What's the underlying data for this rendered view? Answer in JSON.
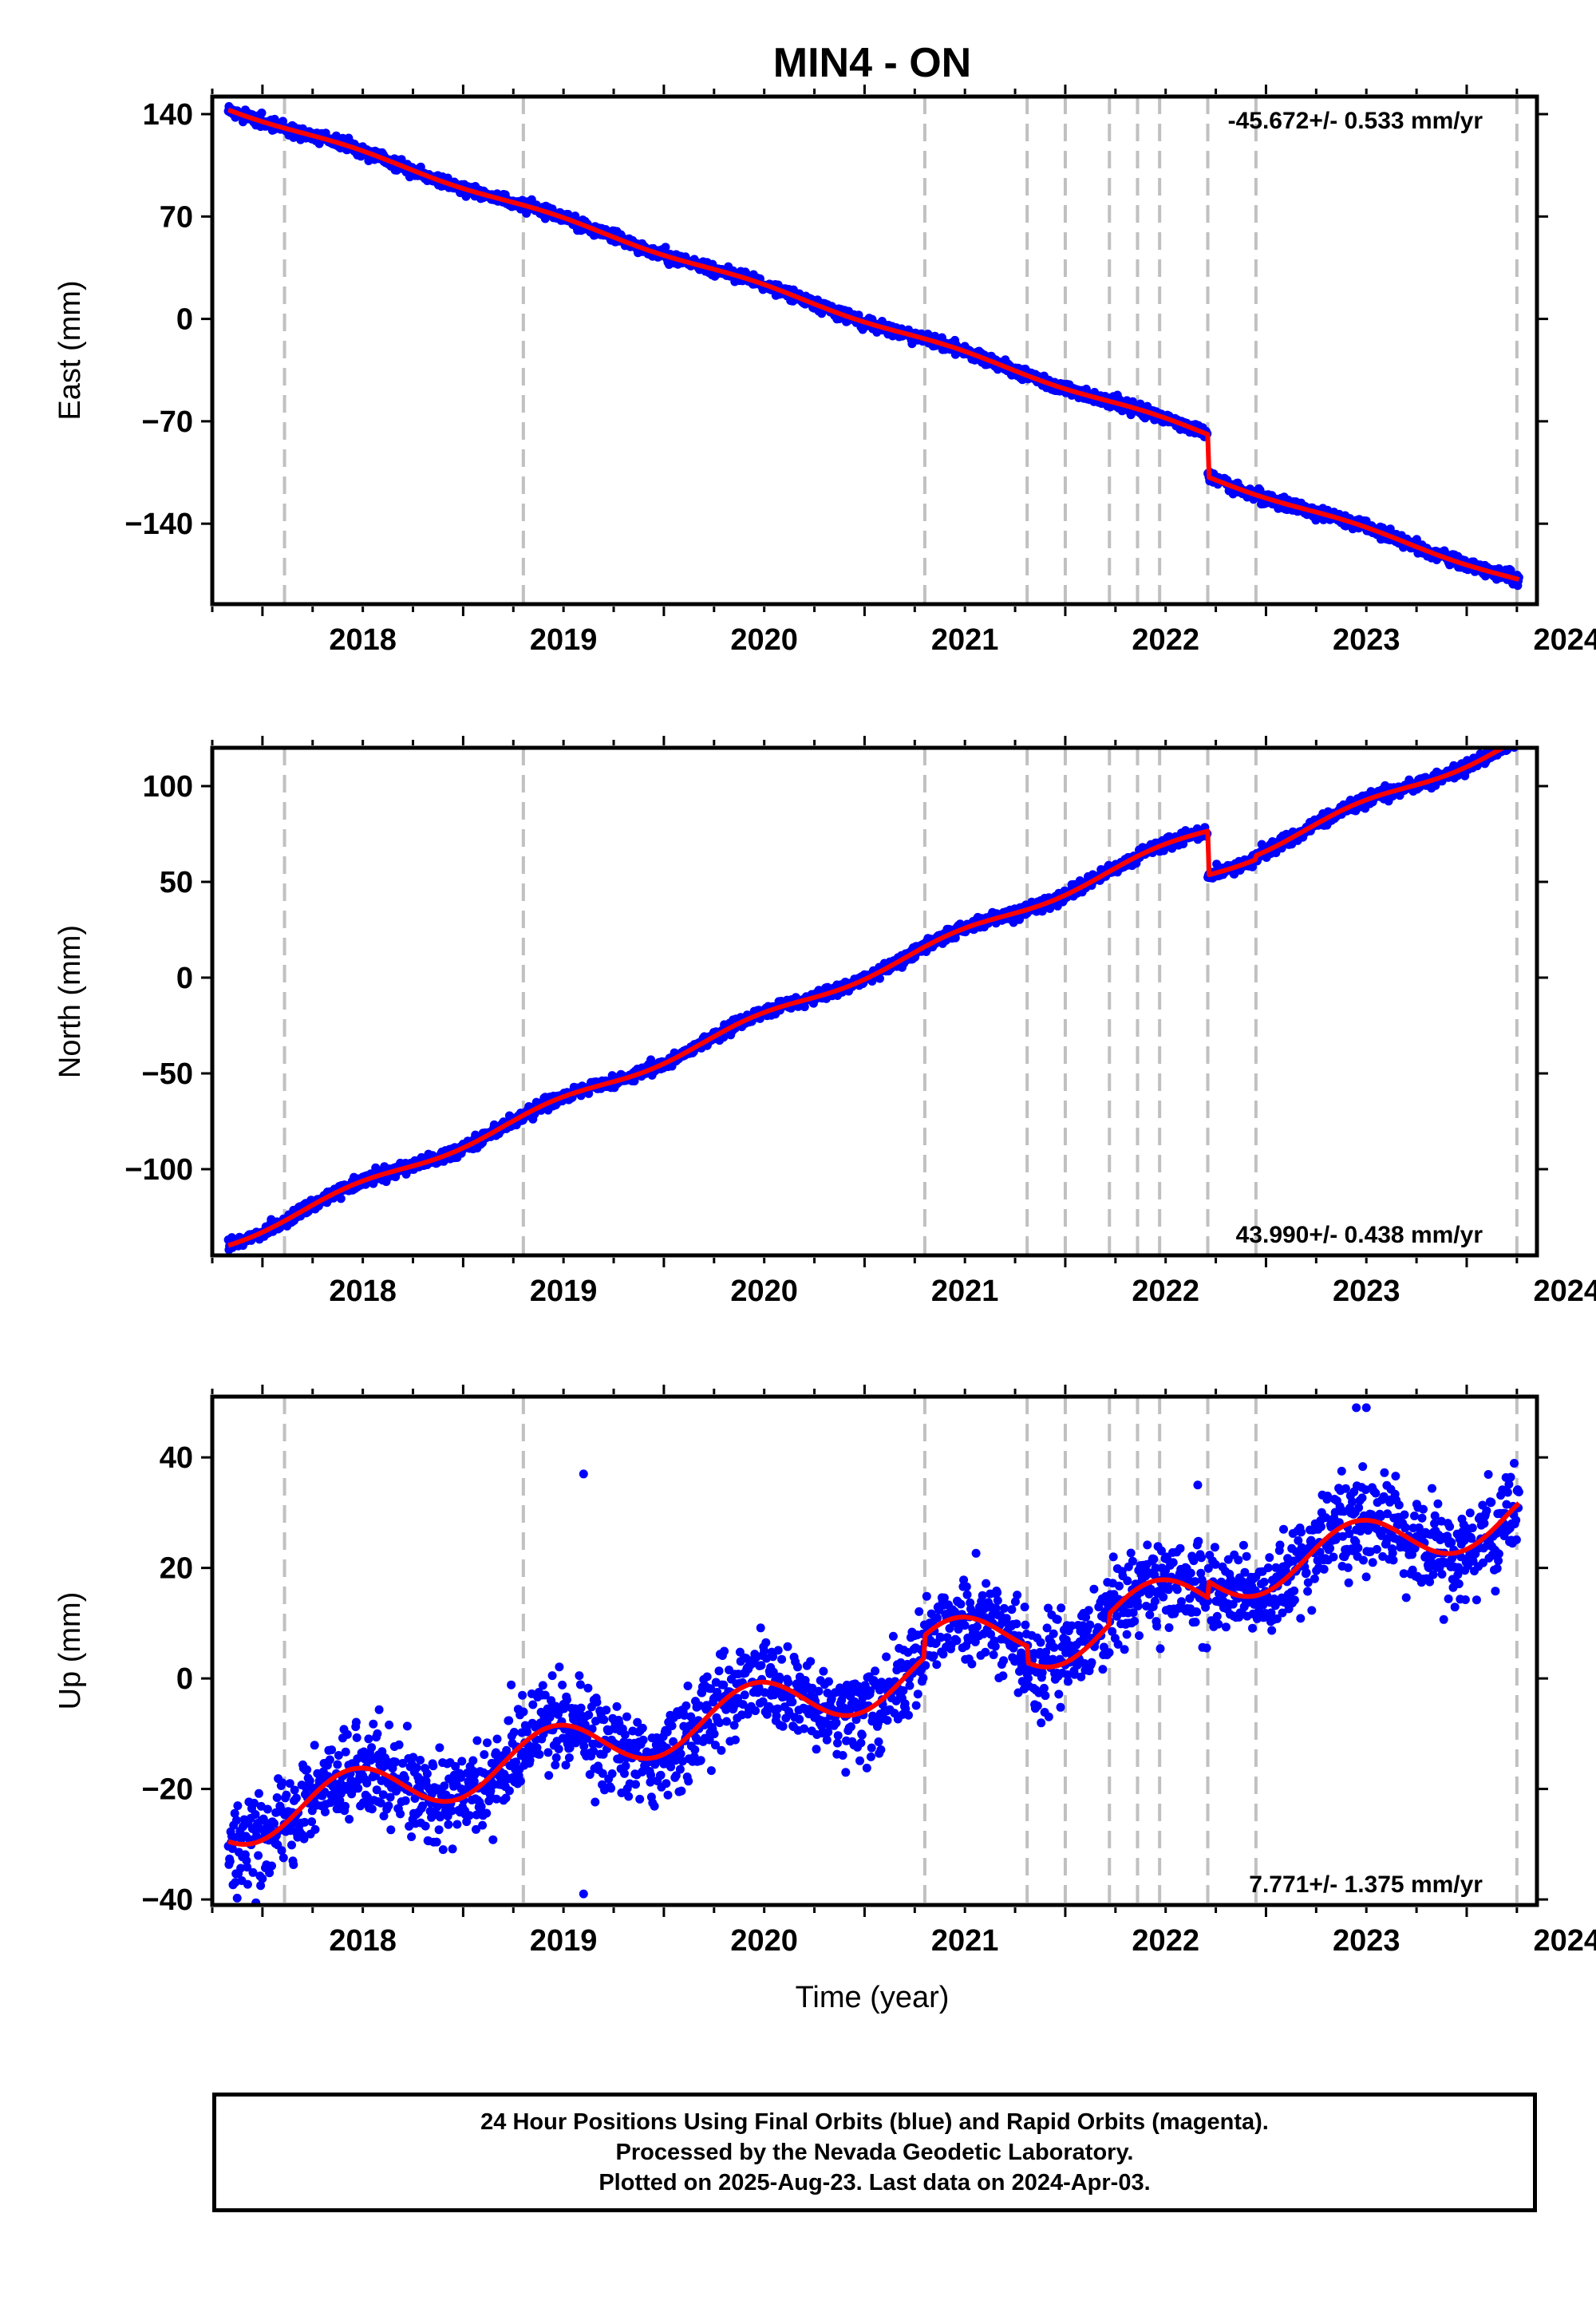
{
  "figure": {
    "title": "MIN4 - ON",
    "xlabel": "Time (year)",
    "footer": [
      "24 Hour Positions Using Final Orbits (blue) and Rapid Orbits (magenta).",
      "Processed by the Nevada Geodetic Laboratory.",
      "Plotted on 2025-Aug-23. Last data on 2024-Apr-03."
    ]
  },
  "colors": {
    "data": "#0000ff",
    "model": "#ff0000",
    "event_lines": "#c0c0c0",
    "axes": "#000000"
  },
  "chart_data": [
    {
      "type": "scatter",
      "panel": "east",
      "ylabel": "East (mm)",
      "rate_text": "-45.672+/- 0.533 mm/yr",
      "rate_position": "top-right",
      "xlim": [
        2017.75,
        2024.35
      ],
      "ylim": [
        -195,
        152
      ],
      "x_ticks": [
        "2018",
        "2019",
        "2020",
        "2021",
        "2022",
        "2023",
        "2024"
      ],
      "y_ticks": [
        140,
        70,
        0,
        -70,
        -140
      ],
      "event_lines": [
        2018.11,
        2019.3,
        2021.3,
        2021.81,
        2022.0,
        2022.22,
        2022.36,
        2022.47,
        2022.71,
        2022.95,
        2024.25
      ],
      "model": {
        "rate": -45.672,
        "anchor": [
          2017.83,
          144
        ],
        "offsets": [
          {
            "at": 2022.71,
            "value": -29
          }
        ],
        "seasonal": 1.5,
        "scatter": 2.0,
        "end": 2024.26
      },
      "visible_points_approx": 2200
    },
    {
      "type": "scatter",
      "panel": "north",
      "ylabel": "North (mm)",
      "rate_text": "43.990+/- 0.438 mm/yr",
      "rate_position": "bottom-right",
      "xlim": [
        2017.75,
        2024.35
      ],
      "ylim": [
        -145,
        120
      ],
      "x_ticks": [
        "2018",
        "2019",
        "2020",
        "2021",
        "2022",
        "2023",
        "2024"
      ],
      "y_ticks": [
        100,
        50,
        0,
        -50,
        -100
      ],
      "event_lines": [
        2018.11,
        2019.3,
        2021.3,
        2021.81,
        2022.0,
        2022.22,
        2022.36,
        2022.47,
        2022.71,
        2022.95,
        2024.25
      ],
      "model": {
        "rate": 43.99,
        "anchor": [
          2017.83,
          -138
        ],
        "offsets": [
          {
            "at": 2022.71,
            "value": -23
          },
          {
            "at": 2022.95,
            "value": 2
          }
        ],
        "seasonal": 2.5,
        "scatter": 1.6,
        "end": 2024.26
      },
      "visible_points_approx": 2200
    },
    {
      "type": "scatter",
      "panel": "up",
      "ylabel": "Up (mm)",
      "rate_text": "7.771+/- 1.375 mm/yr",
      "rate_position": "bottom-right",
      "xlim": [
        2017.75,
        2024.35
      ],
      "ylim": [
        -41,
        51
      ],
      "x_ticks": [
        "2018",
        "2019",
        "2020",
        "2021",
        "2022",
        "2023",
        "2024"
      ],
      "y_ticks": [
        40,
        20,
        0,
        -20,
        -40
      ],
      "event_lines": [
        2018.11,
        2019.3,
        2021.3,
        2021.81,
        2022.0,
        2022.22,
        2022.36,
        2022.47,
        2022.71,
        2022.95,
        2024.25
      ],
      "model": {
        "rate": 7.771,
        "anchor": [
          2017.83,
          -26
        ],
        "offsets": [
          {
            "at": 2021.3,
            "value": 4
          },
          {
            "at": 2021.81,
            "value": -3
          },
          {
            "at": 2022.22,
            "value": 2
          },
          {
            "at": 2022.71,
            "value": 3
          }
        ],
        "seasonal": 4.8,
        "scatter": 4.2,
        "end": 2024.26
      },
      "outliers": [
        [
          2019.6,
          37
        ],
        [
          2019.6,
          -39
        ],
        [
          2023.45,
          49
        ],
        [
          2023.5,
          49
        ],
        [
          2022.66,
          35
        ]
      ],
      "visible_points_approx": 2200
    }
  ]
}
